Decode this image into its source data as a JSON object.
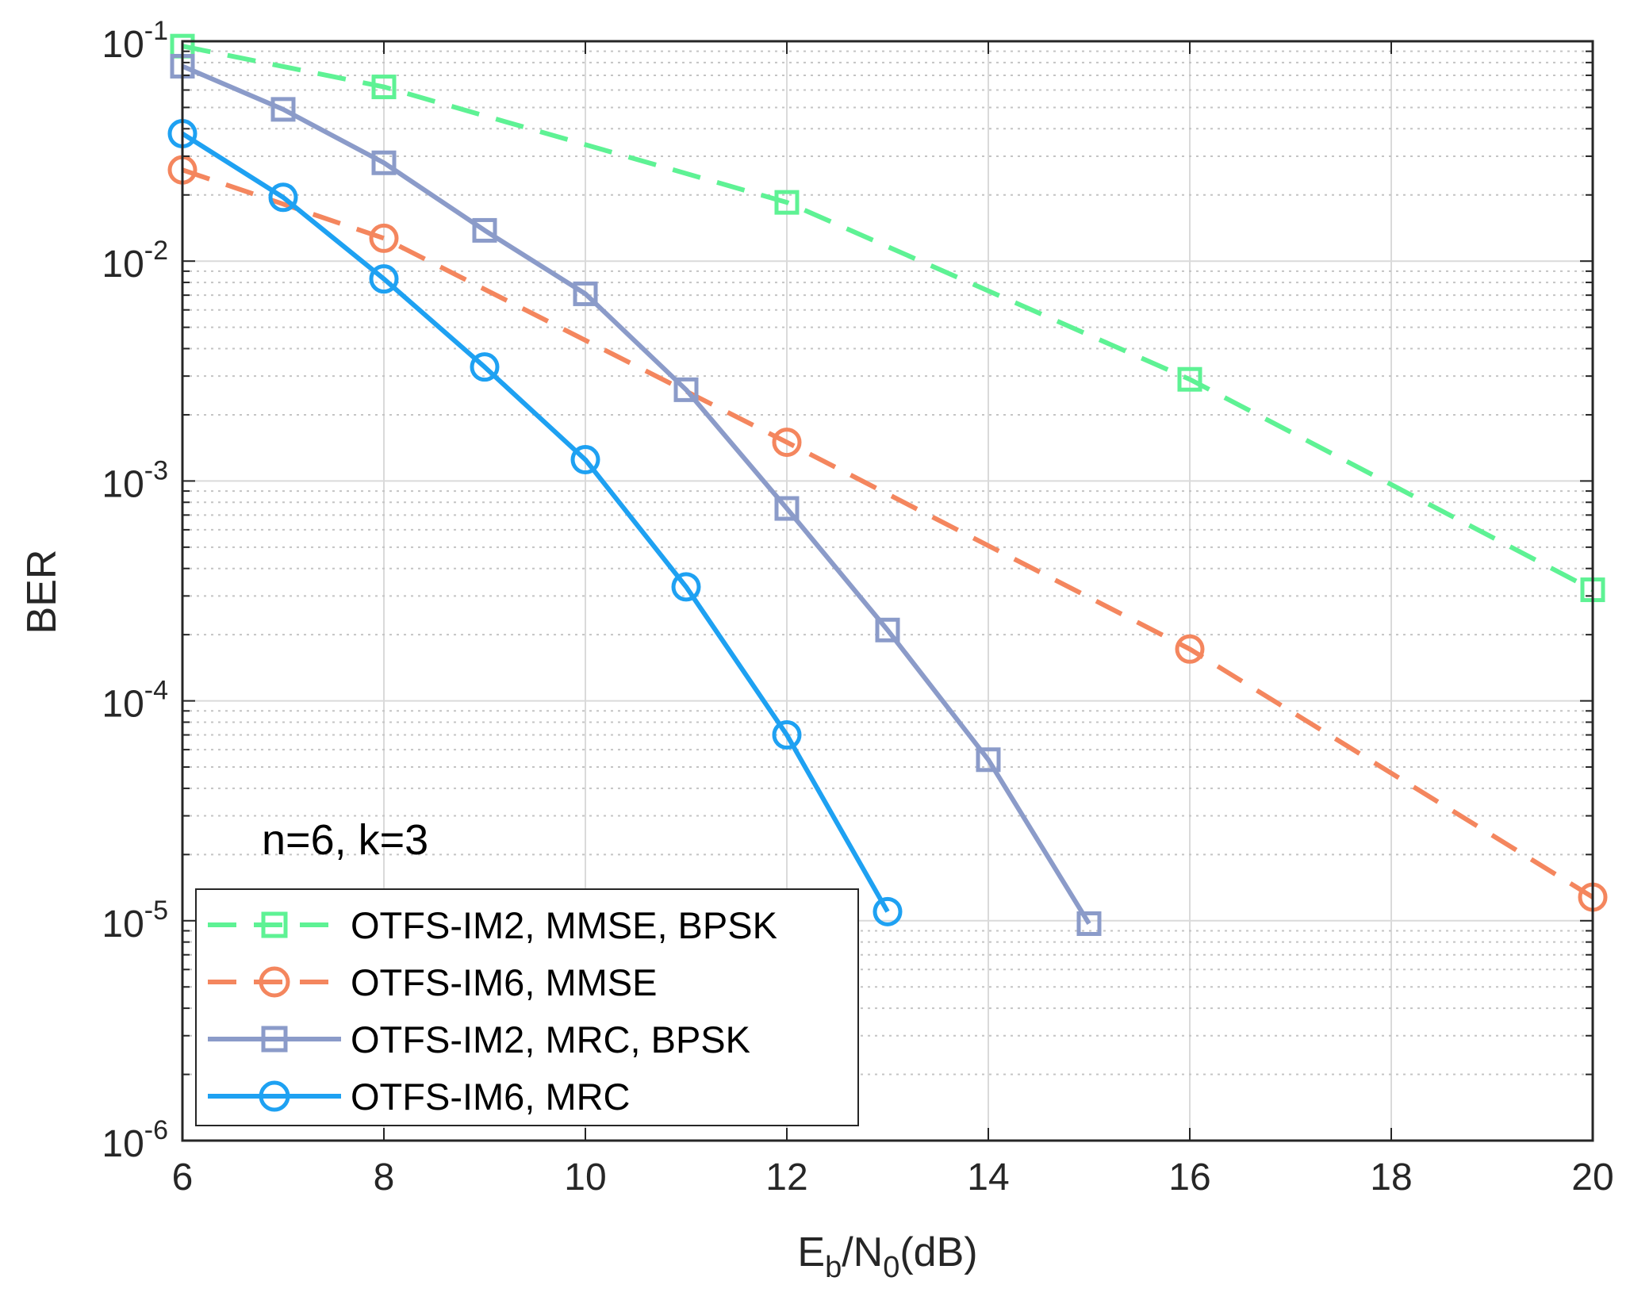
{
  "chart_data": {
    "type": "line",
    "title": "",
    "xlabel": {
      "main": "E",
      "sub1": "b",
      "mid": "/N",
      "sub2": "0",
      "tail": "(dB)"
    },
    "ylabel": "BER",
    "xlim": [
      6,
      20
    ],
    "ylim": [
      1e-06,
      0.1
    ],
    "yscale": "log",
    "grid": true,
    "x_ticks": [
      6,
      8,
      10,
      12,
      14,
      16,
      18,
      20
    ],
    "x_tick_labels": [
      "6",
      "8",
      "10",
      "12",
      "14",
      "16",
      "18",
      "20"
    ],
    "y_ticks": [
      {
        "value": 0.1,
        "base": "10",
        "exp": "-1"
      },
      {
        "value": 0.01,
        "base": "10",
        "exp": "-2"
      },
      {
        "value": 0.001,
        "base": "10",
        "exp": "-3"
      },
      {
        "value": 0.0001,
        "base": "10",
        "exp": "-4"
      },
      {
        "value": 1e-05,
        "base": "10",
        "exp": "-5"
      },
      {
        "value": 1e-06,
        "base": "10",
        "exp": "-6"
      }
    ],
    "annotation": "n=6, k=3",
    "legend_position": "bottom-left",
    "series": [
      {
        "name": "OTFS-IM2, MMSE, BPSK",
        "color": "#5EF294",
        "dashed": true,
        "marker": "square",
        "x": [
          6,
          8,
          12,
          16,
          20
        ],
        "y": [
          0.095,
          0.062,
          0.0185,
          0.0029,
          0.00032
        ]
      },
      {
        "name": "OTFS-IM6, MMSE",
        "color": "#F4865E",
        "dashed": true,
        "marker": "circle",
        "x": [
          6,
          8,
          12,
          16,
          20
        ],
        "y": [
          0.026,
          0.0127,
          0.0015,
          0.000172,
          1.28e-05
        ]
      },
      {
        "name": "OTFS-IM2, MRC, BPSK",
        "color": "#8B9BC9",
        "dashed": false,
        "marker": "square",
        "x": [
          6,
          7,
          8,
          9,
          10,
          11,
          12,
          13,
          14,
          15
        ],
        "y": [
          0.077,
          0.049,
          0.028,
          0.0138,
          0.0071,
          0.0026,
          0.00075,
          0.00021,
          5.4e-05,
          9.7e-06
        ]
      },
      {
        "name": "OTFS-IM6, MRC",
        "color": "#1EA1F2",
        "dashed": false,
        "marker": "circle",
        "x": [
          6,
          7,
          8,
          9,
          10,
          11,
          12,
          13
        ],
        "y": [
          0.038,
          0.0195,
          0.0083,
          0.0033,
          0.00125,
          0.00033,
          7e-05,
          1.1e-05
        ]
      }
    ]
  }
}
